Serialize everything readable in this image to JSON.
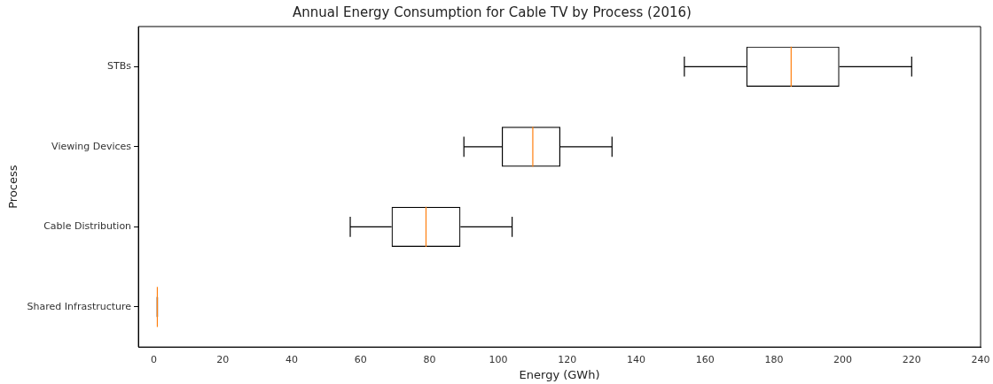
{
  "chart_data": {
    "type": "box",
    "title": "Annual Energy Consumption for Cable TV by Process (2016)",
    "xlabel": "Energy (GWh)",
    "ylabel": "Process",
    "orientation": "horizontal",
    "categories": [
      "STBs",
      "Viewing Devices",
      "Cable Distribution",
      "Shared Infrastructure"
    ],
    "boxes": [
      {
        "low": 154,
        "q1": 172,
        "median": 185,
        "q3": 199,
        "high": 220
      },
      {
        "low": 90,
        "q1": 101,
        "median": 110,
        "q3": 118,
        "high": 133
      },
      {
        "low": 57,
        "q1": 69,
        "median": 79,
        "q3": 89,
        "high": 104
      },
      {
        "low": 1,
        "q1": 1,
        "median": 1,
        "q3": 1,
        "high": 1
      }
    ],
    "xlim": [
      -4.5,
      240
    ],
    "xticks": [
      0,
      20,
      40,
      60,
      80,
      100,
      120,
      140,
      160,
      180,
      200,
      220,
      240
    ],
    "grid": false,
    "legend": false
  }
}
